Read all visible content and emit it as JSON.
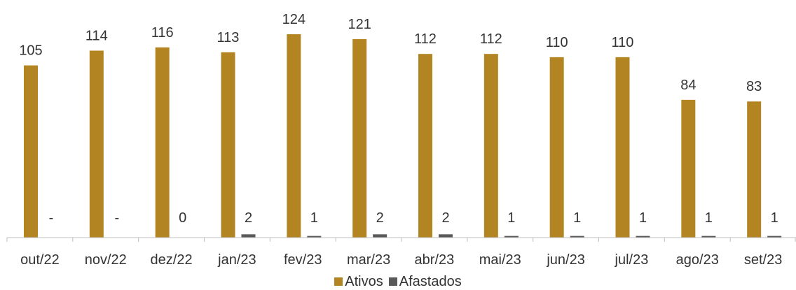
{
  "chart_data": {
    "type": "bar",
    "categories": [
      "out/22",
      "nov/22",
      "dez/22",
      "jan/23",
      "fev/23",
      "mar/23",
      "abr/23",
      "mai/23",
      "jun/23",
      "jul/23",
      "ago/23",
      "set/23"
    ],
    "series": [
      {
        "name": "Ativos",
        "color": "#B38422",
        "values": [
          105,
          114,
          116,
          113,
          124,
          121,
          112,
          112,
          110,
          110,
          84,
          83
        ],
        "labels": [
          "105",
          "114",
          "116",
          "113",
          "124",
          "121",
          "112",
          "112",
          "110",
          "110",
          "84",
          "83"
        ]
      },
      {
        "name": "Afastados",
        "color": "#595959",
        "values": [
          0,
          0,
          0,
          2,
          1,
          2,
          2,
          1,
          1,
          1,
          1,
          1
        ],
        "labels": [
          "-",
          "-",
          "0",
          "2",
          "1",
          "2",
          "2",
          "1",
          "1",
          "1",
          "1",
          "1"
        ]
      }
    ],
    "title": "",
    "xlabel": "",
    "ylabel": "",
    "ylim": [
      0,
      124
    ],
    "grid": false,
    "legend_position": "bottom"
  }
}
